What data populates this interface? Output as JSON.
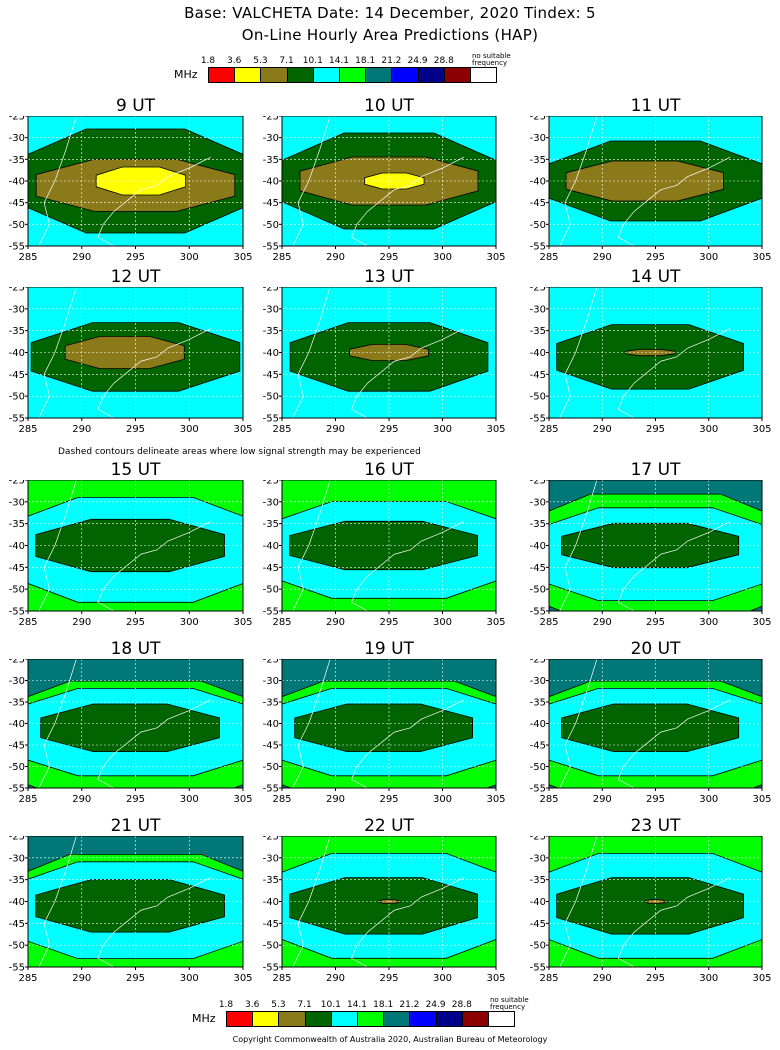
{
  "header": {
    "title": "Base: VALCHETA Date: 14 December, 2020 Tindex: 5",
    "subtitle": "On-Line Hourly Area Predictions (HAP)"
  },
  "legend": {
    "unit": "MHz",
    "labels": [
      "1.8",
      "3.6",
      "5.3",
      "7.1",
      "10.1",
      "14.1",
      "18.1",
      "21.2",
      "24.9",
      "28.8"
    ],
    "colors": [
      "#ff0000",
      "#ffff00",
      "#8b7a1a",
      "#006400",
      "#00ffff",
      "#00ff00",
      "#007878",
      "#0000ff",
      "#00008b",
      "#8b0000",
      "#ffffff"
    ],
    "no_suitable_1": "no suitable",
    "no_suitable_2": "frequency"
  },
  "note": "Dashed contours delineate areas where low signal strength may be experienced",
  "copyright": "Copyright Commonwealth of Australia 2020, Australian Bureau of Meteorology",
  "chart_data": {
    "type": "heatmap",
    "x_ticks": [
      "285",
      "290",
      "295",
      "300",
      "305"
    ],
    "y_ticks": [
      "-25",
      "-30",
      "-35",
      "-40",
      "-45",
      "-50",
      "-55"
    ],
    "xlim": [
      285,
      305
    ],
    "ylim": [
      -55,
      -25
    ],
    "grid": true,
    "panels": [
      {
        "title": "9 UT",
        "background": "#00ffff",
        "bands": [
          {
            "color": "#006400",
            "cx": 295,
            "cy": -40,
            "rx": 12,
            "ry": 13
          },
          {
            "color": "#8b7a1a",
            "cx": 295,
            "cy": -41,
            "rx": 10,
            "ry": 6.5
          },
          {
            "color": "#ffff00",
            "cx": 295.5,
            "cy": -40,
            "rx": 4.5,
            "ry": 3.5
          }
        ]
      },
      {
        "title": "10 UT",
        "background": "#00ffff",
        "bands": [
          {
            "color": "#006400",
            "cx": 295,
            "cy": -40,
            "rx": 11,
            "ry": 12
          },
          {
            "color": "#8b7a1a",
            "cx": 295,
            "cy": -40,
            "rx": 9,
            "ry": 6
          },
          {
            "color": "#ffff00",
            "cx": 295.5,
            "cy": -40,
            "rx": 3,
            "ry": 2
          }
        ]
      },
      {
        "title": "11 UT",
        "background": "#00ffff",
        "bands": [
          {
            "color": "#006400",
            "cx": 295,
            "cy": -40,
            "rx": 11,
            "ry": 10
          },
          {
            "color": "#8b7a1a",
            "cx": 294,
            "cy": -40,
            "rx": 8,
            "ry": 5
          }
        ]
      },
      {
        "title": "12 UT",
        "background": "#00ffff",
        "bands": [
          {
            "color": "#006400",
            "cx": 295,
            "cy": -41,
            "rx": 10.5,
            "ry": 8.5
          },
          {
            "color": "#8b7a1a",
            "cx": 294,
            "cy": -40,
            "rx": 6,
            "ry": 4
          }
        ]
      },
      {
        "title": "13 UT",
        "background": "#00ffff",
        "bands": [
          {
            "color": "#006400",
            "cx": 295,
            "cy": -41,
            "rx": 10,
            "ry": 8.5
          },
          {
            "color": "#8b7a1a",
            "cx": 295,
            "cy": -40,
            "rx": 4,
            "ry": 2
          }
        ]
      },
      {
        "title": "14 UT",
        "background": "#00ffff",
        "bands": [
          {
            "color": "#006400",
            "cx": 294.5,
            "cy": -41,
            "rx": 9.5,
            "ry": 8
          },
          {
            "color": "#8b7a1a",
            "cx": 294.5,
            "cy": -40,
            "rx": 2.5,
            "ry": 0.8
          }
        ]
      },
      {
        "title": "15 UT",
        "background": "#00ff00",
        "bands": [
          {
            "color": "#00ffff",
            "cx": 295,
            "cy": -41,
            "rx": 14,
            "ry": 13
          },
          {
            "color": "#006400",
            "cx": 294.5,
            "cy": -40,
            "rx": 9.5,
            "ry": 6.5
          }
        ]
      },
      {
        "title": "16 UT",
        "background": "#00ff00",
        "bands": [
          {
            "color": "#00ffff",
            "cx": 295,
            "cy": -41,
            "rx": 14,
            "ry": 12
          },
          {
            "color": "#006400",
            "cx": 294.5,
            "cy": -40,
            "rx": 9.5,
            "ry": 6
          }
        ]
      },
      {
        "title": "17 UT",
        "background": "#007878",
        "bands": [
          {
            "color": "#00ff00",
            "cx": 295,
            "cy": -43,
            "rx": 16,
            "ry": 16
          },
          {
            "color": "#00ffff",
            "cx": 295,
            "cy": -42,
            "rx": 14,
            "ry": 11.5
          },
          {
            "color": "#006400",
            "cx": 294.5,
            "cy": -40,
            "rx": 9,
            "ry": 5.5
          }
        ]
      },
      {
        "title": "18 UT",
        "background": "#007878",
        "bands": [
          {
            "color": "#00ff00",
            "cx": 295,
            "cy": -44,
            "rx": 16,
            "ry": 15
          },
          {
            "color": "#00ffff",
            "cx": 295,
            "cy": -42,
            "rx": 14,
            "ry": 11
          },
          {
            "color": "#006400",
            "cx": 294.5,
            "cy": -41,
            "rx": 9,
            "ry": 6
          }
        ]
      },
      {
        "title": "19 UT",
        "background": "#007878",
        "bands": [
          {
            "color": "#00ff00",
            "cx": 295,
            "cy": -44,
            "rx": 16,
            "ry": 15
          },
          {
            "color": "#00ffff",
            "cx": 295,
            "cy": -42,
            "rx": 14,
            "ry": 11
          },
          {
            "color": "#006400",
            "cx": 294.5,
            "cy": -41,
            "rx": 9,
            "ry": 6
          }
        ]
      },
      {
        "title": "20 UT",
        "background": "#007878",
        "bands": [
          {
            "color": "#00ff00",
            "cx": 295,
            "cy": -44,
            "rx": 16,
            "ry": 15
          },
          {
            "color": "#00ffff",
            "cx": 295,
            "cy": -42,
            "rx": 14,
            "ry": 11
          },
          {
            "color": "#006400",
            "cx": 294.5,
            "cy": -41,
            "rx": 9,
            "ry": 6
          }
        ]
      },
      {
        "title": "21 UT",
        "background": "#007878",
        "bands": [
          {
            "color": "#00ff00",
            "cx": 295,
            "cy": -44,
            "rx": 16,
            "ry": 16
          },
          {
            "color": "#00ffff",
            "cx": 295,
            "cy": -42,
            "rx": 14,
            "ry": 12
          },
          {
            "color": "#006400",
            "cx": 294.5,
            "cy": -41,
            "rx": 9.5,
            "ry": 6.5
          }
        ]
      },
      {
        "title": "22 UT",
        "background": "#00ff00",
        "bands": [
          {
            "color": "#00ffff",
            "cx": 295,
            "cy": -41,
            "rx": 14,
            "ry": 13
          },
          {
            "color": "#006400",
            "cx": 294.5,
            "cy": -41,
            "rx": 9.5,
            "ry": 7
          },
          {
            "color": "#8b7a1a",
            "cx": 295,
            "cy": -40,
            "rx": 1,
            "ry": 0.5
          }
        ]
      },
      {
        "title": "23 UT",
        "background": "#00ff00",
        "bands": [
          {
            "color": "#00ffff",
            "cx": 295,
            "cy": -41,
            "rx": 14,
            "ry": 13
          },
          {
            "color": "#006400",
            "cx": 294.5,
            "cy": -41,
            "rx": 9.5,
            "ry": 7
          },
          {
            "color": "#8b7a1a",
            "cx": 295,
            "cy": -40,
            "rx": 1,
            "ry": 0.5
          }
        ]
      }
    ]
  }
}
